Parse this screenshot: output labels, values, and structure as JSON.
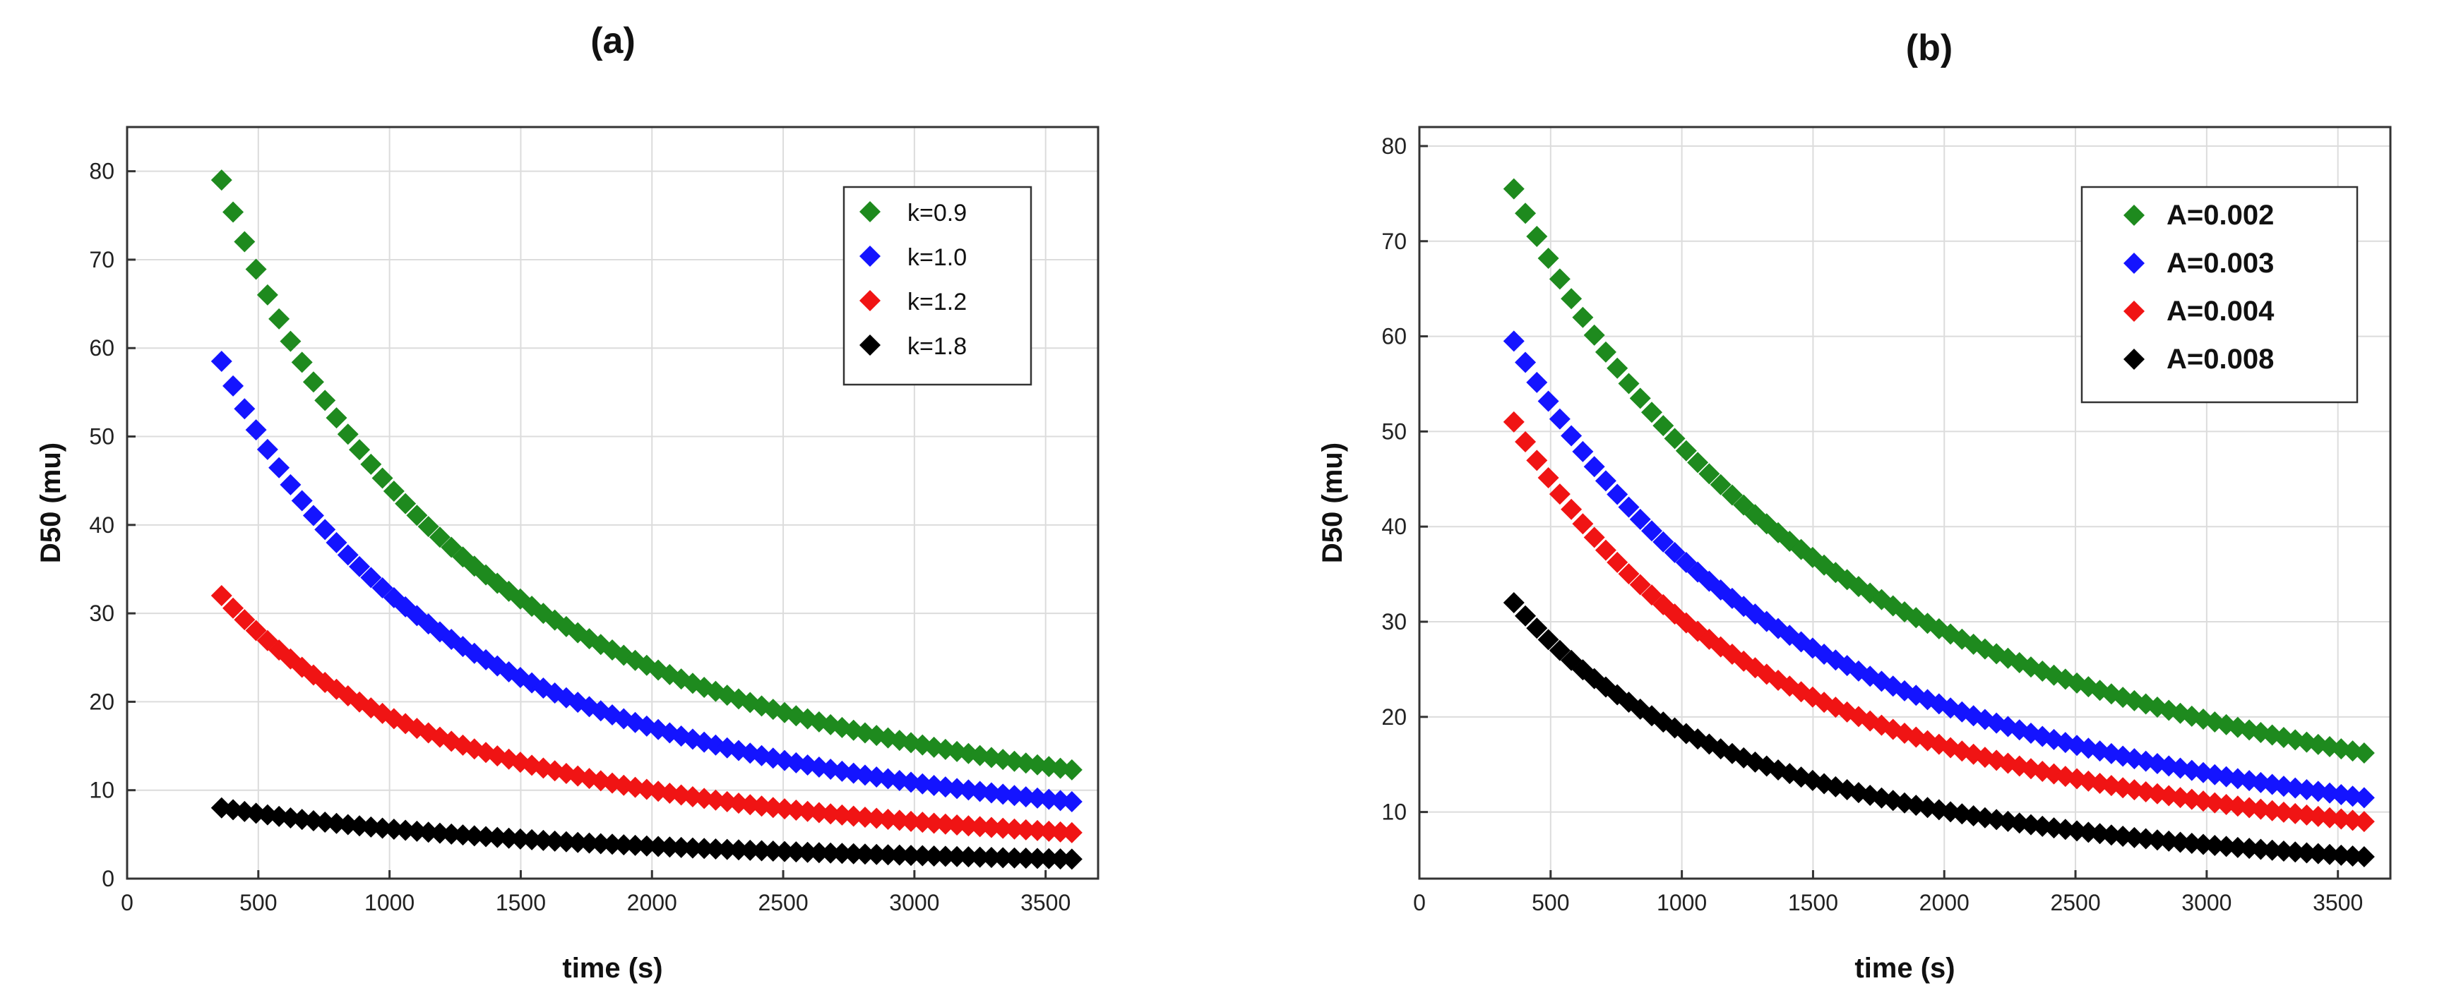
{
  "chart_data": [
    {
      "panel_label": "(a)",
      "type": "scatter",
      "marker": "diamond",
      "xlabel": "time (s)",
      "ylabel": "D50 (mu)",
      "xlim": [
        0,
        3700
      ],
      "ylim": [
        0,
        85
      ],
      "xticks": [
        0,
        500,
        1000,
        1500,
        2000,
        2500,
        3000,
        3500
      ],
      "yticks": [
        0,
        10,
        20,
        30,
        40,
        50,
        60,
        70,
        80
      ],
      "grid": true,
      "legend_position": "top-right",
      "x_range": [
        360,
        3600
      ],
      "series": [
        {
          "name": "k=0.9",
          "color": "#1e8a1e",
          "start": 79,
          "end": 12.3
        },
        {
          "name": "k=1.0",
          "color": "#1414ff",
          "start": 58.5,
          "end": 8.7
        },
        {
          "name": "k=1.2",
          "color": "#f01414",
          "start": 32,
          "end": 5.2
        },
        {
          "name": "k=1.8",
          "color": "#000000",
          "start": 8,
          "end": 2.2
        }
      ]
    },
    {
      "panel_label": "(b)",
      "type": "scatter",
      "marker": "diamond",
      "xlabel": "time (s)",
      "ylabel": "D50 (mu)",
      "xlim": [
        0,
        3700
      ],
      "ylim": [
        3,
        82
      ],
      "xticks": [
        0,
        500,
        1000,
        1500,
        2000,
        2500,
        3000,
        3500
      ],
      "yticks": [
        10,
        20,
        30,
        40,
        50,
        60,
        70,
        80
      ],
      "grid": true,
      "legend_position": "top-right",
      "x_range": [
        360,
        3600
      ],
      "series": [
        {
          "name": "A=0.002",
          "color": "#1e8a1e",
          "start": 75.5,
          "end": 16.2
        },
        {
          "name": "A=0.003",
          "color": "#1414ff",
          "start": 59.5,
          "end": 11.5
        },
        {
          "name": "A=0.004",
          "color": "#f01414",
          "start": 51,
          "end": 9
        },
        {
          "name": "A=0.008",
          "color": "#000000",
          "start": 32,
          "end": 5.3
        }
      ]
    }
  ]
}
